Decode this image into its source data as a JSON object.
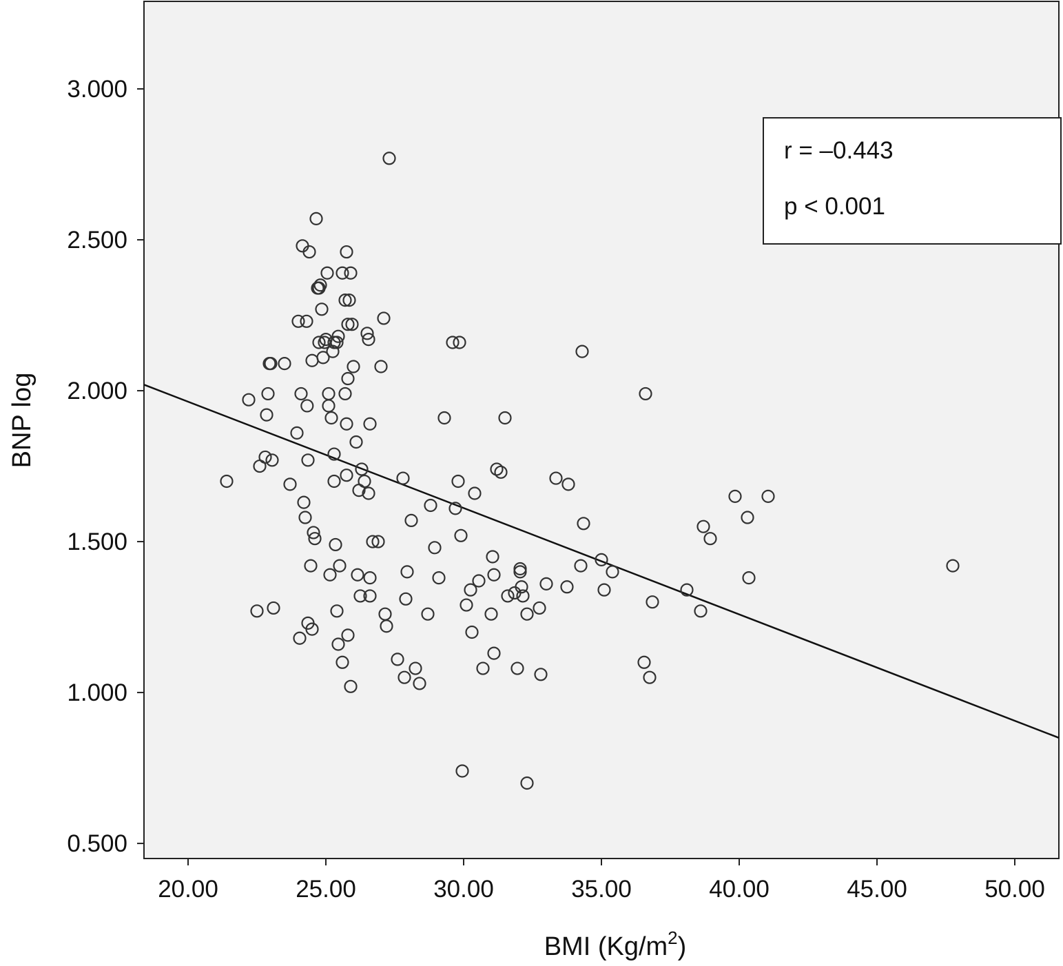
{
  "chart_data": {
    "type": "scatter",
    "xlabel": "BMI (Kg/m",
    "xlabel_superscript": "2",
    "xlabel_close": ")",
    "ylabel": "BNP log",
    "xlim": [
      18.4,
      51.6
    ],
    "ylim": [
      0.45,
      3.29
    ],
    "x_ticks": [
      20,
      25,
      30,
      35,
      40,
      45,
      50
    ],
    "x_tick_labels": [
      "20.00",
      "25.00",
      "30.00",
      "35.00",
      "40.00",
      "45.00",
      "50.00"
    ],
    "y_ticks": [
      0.5,
      1.0,
      1.5,
      2.0,
      2.5,
      3.0
    ],
    "y_tick_labels": [
      "0.500",
      "1.000",
      "1.500",
      "2.000",
      "2.500",
      "3.000"
    ],
    "grid": false,
    "plot_background": "#f2f2f2",
    "marker_color": "#333333",
    "line_color": "#111111",
    "annotations": [
      "r = –0.443",
      "p < 0.001"
    ],
    "fit_line": {
      "x": [
        18.4,
        51.6
      ],
      "y": [
        2.02,
        0.85
      ]
    },
    "points": [
      [
        21.4,
        1.7
      ],
      [
        22.2,
        1.97
      ],
      [
        22.5,
        1.27
      ],
      [
        22.6,
        1.75
      ],
      [
        22.8,
        1.78
      ],
      [
        22.85,
        1.92
      ],
      [
        22.9,
        1.99
      ],
      [
        22.95,
        2.09
      ],
      [
        23.0,
        2.09
      ],
      [
        23.05,
        1.77
      ],
      [
        23.1,
        1.28
      ],
      [
        23.5,
        2.09
      ],
      [
        23.7,
        1.69
      ],
      [
        23.95,
        1.86
      ],
      [
        24.0,
        2.23
      ],
      [
        24.05,
        1.18
      ],
      [
        24.1,
        1.99
      ],
      [
        24.15,
        2.48
      ],
      [
        24.2,
        1.63
      ],
      [
        24.25,
        1.58
      ],
      [
        24.3,
        2.23
      ],
      [
        24.32,
        1.95
      ],
      [
        24.35,
        1.77
      ],
      [
        24.35,
        1.23
      ],
      [
        24.4,
        2.46
      ],
      [
        24.45,
        1.42
      ],
      [
        24.5,
        2.1
      ],
      [
        24.5,
        1.21
      ],
      [
        24.55,
        1.53
      ],
      [
        24.6,
        1.51
      ],
      [
        24.65,
        2.57
      ],
      [
        24.7,
        2.34
      ],
      [
        24.75,
        2.34
      ],
      [
        24.75,
        2.16
      ],
      [
        24.8,
        2.35
      ],
      [
        24.85,
        2.27
      ],
      [
        24.9,
        2.11
      ],
      [
        24.95,
        2.16
      ],
      [
        25.0,
        2.17
      ],
      [
        25.05,
        2.39
      ],
      [
        25.1,
        1.99
      ],
      [
        25.1,
        1.95
      ],
      [
        25.15,
        1.39
      ],
      [
        25.2,
        1.91
      ],
      [
        25.25,
        2.13
      ],
      [
        25.3,
        2.16
      ],
      [
        25.3,
        1.79
      ],
      [
        25.3,
        1.7
      ],
      [
        25.35,
        1.49
      ],
      [
        25.4,
        2.16
      ],
      [
        25.45,
        2.18
      ],
      [
        25.5,
        1.42
      ],
      [
        25.6,
        2.39
      ],
      [
        25.7,
        2.3
      ],
      [
        25.75,
        1.72
      ],
      [
        25.8,
        2.22
      ],
      [
        25.85,
        2.3
      ],
      [
        25.4,
        1.27
      ],
      [
        25.45,
        1.16
      ],
      [
        25.9,
        2.39
      ],
      [
        25.95,
        2.22
      ],
      [
        25.6,
        1.1
      ],
      [
        25.7,
        1.99
      ],
      [
        25.75,
        1.89
      ],
      [
        25.75,
        2.46
      ],
      [
        25.8,
        2.04
      ],
      [
        25.8,
        1.19
      ],
      [
        25.9,
        1.02
      ],
      [
        26.0,
        2.08
      ],
      [
        26.1,
        1.83
      ],
      [
        26.15,
        1.39
      ],
      [
        26.2,
        1.67
      ],
      [
        26.25,
        1.32
      ],
      [
        26.3,
        1.74
      ],
      [
        26.4,
        1.7
      ],
      [
        26.5,
        2.19
      ],
      [
        26.55,
        2.17
      ],
      [
        26.55,
        1.66
      ],
      [
        26.6,
        1.89
      ],
      [
        26.6,
        1.38
      ],
      [
        26.6,
        1.32
      ],
      [
        26.7,
        1.5
      ],
      [
        26.9,
        1.5
      ],
      [
        27.0,
        2.08
      ],
      [
        27.1,
        2.24
      ],
      [
        27.15,
        1.26
      ],
      [
        27.2,
        1.22
      ],
      [
        27.3,
        2.77
      ],
      [
        27.6,
        1.11
      ],
      [
        27.8,
        1.71
      ],
      [
        27.85,
        1.05
      ],
      [
        27.9,
        1.31
      ],
      [
        27.95,
        1.4
      ],
      [
        28.1,
        1.57
      ],
      [
        28.25,
        1.08
      ],
      [
        28.4,
        1.03
      ],
      [
        28.7,
        1.26
      ],
      [
        28.8,
        1.62
      ],
      [
        28.95,
        1.48
      ],
      [
        29.1,
        1.38
      ],
      [
        29.3,
        1.91
      ],
      [
        29.6,
        2.16
      ],
      [
        29.7,
        1.61
      ],
      [
        29.8,
        1.7
      ],
      [
        29.85,
        2.16
      ],
      [
        29.9,
        1.52
      ],
      [
        29.95,
        0.74
      ],
      [
        30.1,
        1.29
      ],
      [
        30.25,
        1.34
      ],
      [
        30.3,
        1.2
      ],
      [
        30.4,
        1.66
      ],
      [
        30.55,
        1.37
      ],
      [
        30.7,
        1.08
      ],
      [
        31.0,
        1.26
      ],
      [
        31.05,
        1.45
      ],
      [
        31.1,
        1.13
      ],
      [
        31.1,
        1.39
      ],
      [
        31.2,
        1.74
      ],
      [
        31.35,
        1.73
      ],
      [
        31.5,
        1.91
      ],
      [
        31.6,
        1.32
      ],
      [
        31.85,
        1.33
      ],
      [
        31.95,
        1.08
      ],
      [
        32.05,
        1.4
      ],
      [
        32.05,
        1.41
      ],
      [
        32.1,
        1.35
      ],
      [
        32.15,
        1.32
      ],
      [
        32.3,
        1.26
      ],
      [
        32.3,
        0.7
      ],
      [
        32.75,
        1.28
      ],
      [
        32.8,
        1.06
      ],
      [
        33.0,
        1.36
      ],
      [
        33.35,
        1.71
      ],
      [
        33.75,
        1.35
      ],
      [
        33.8,
        1.69
      ],
      [
        34.25,
        1.42
      ],
      [
        34.3,
        2.13
      ],
      [
        34.35,
        1.56
      ],
      [
        35.0,
        1.44
      ],
      [
        35.1,
        1.34
      ],
      [
        35.4,
        1.4
      ],
      [
        36.55,
        1.1
      ],
      [
        36.6,
        1.99
      ],
      [
        36.75,
        1.05
      ],
      [
        36.85,
        1.3
      ],
      [
        38.1,
        1.34
      ],
      [
        38.6,
        1.27
      ],
      [
        38.7,
        1.55
      ],
      [
        38.95,
        1.51
      ],
      [
        39.85,
        1.65
      ],
      [
        40.3,
        1.58
      ],
      [
        40.35,
        1.38
      ],
      [
        41.05,
        1.65
      ],
      [
        47.75,
        1.42
      ]
    ]
  }
}
